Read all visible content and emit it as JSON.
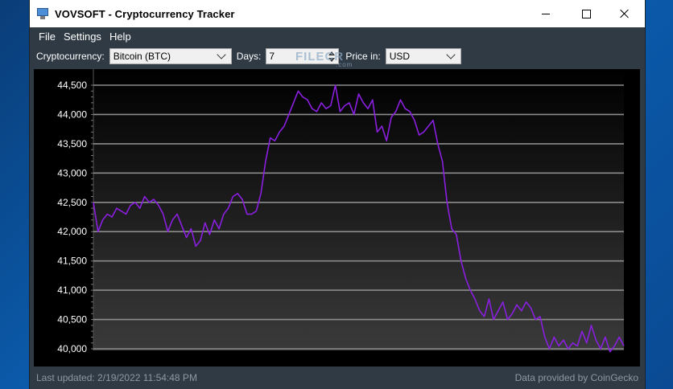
{
  "window": {
    "title": "VOVSOFT - Cryptocurrency Tracker"
  },
  "menu": [
    "File",
    "Settings",
    "Help"
  ],
  "toolbar": {
    "crypto_label": "Cryptocurrency:",
    "crypto_value": "Bitcoin (BTC)",
    "days_label": "Days:",
    "days_value": "7",
    "price_label": "Price in:",
    "price_value": "USD"
  },
  "watermark": {
    "main": "FILECR",
    "sub": ".com"
  },
  "status": {
    "last_updated": "Last updated: 2/19/2022 11:54:48 PM",
    "provider": "Data provided by CoinGecko"
  },
  "colors": {
    "line": "#8a1fe0",
    "grid": "#8c8c8c",
    "chart_bg_top": "#000000",
    "chart_bg_bottom": "#3a3a3a"
  },
  "chart_data": {
    "type": "line",
    "title": "",
    "xlabel": "",
    "ylabel": "",
    "ylim": [
      40000,
      44500
    ],
    "yticks": [
      40000,
      40500,
      41000,
      41500,
      42000,
      42500,
      43000,
      43500,
      44000,
      44500
    ],
    "ytick_labels": [
      "40,000",
      "40,500",
      "41,000",
      "41,500",
      "42,000",
      "42,500",
      "43,000",
      "43,500",
      "44,000",
      "44,500"
    ],
    "grid": true,
    "series": [
      {
        "values": [
          42500,
          42000,
          42200,
          42300,
          42250,
          42400,
          42350,
          42300,
          42450,
          42500,
          42400,
          42600,
          42500,
          42550,
          42450,
          42300,
          42000,
          42200,
          42300,
          42100,
          41900,
          42050,
          41750,
          41850,
          42150,
          41950,
          42200,
          42050,
          42300,
          42400,
          42600,
          42650,
          42550,
          42300,
          42300,
          42350,
          42650,
          43200,
          43600,
          43550,
          43700,
          43800,
          44000,
          44200,
          44400,
          44300,
          44250,
          44100,
          44050,
          44200,
          44100,
          44150,
          44500,
          44050,
          44150,
          44200,
          44000,
          44350,
          44200,
          44100,
          44250,
          43700,
          43800,
          43550,
          43950,
          44050,
          44250,
          44100,
          44050,
          43900,
          43650,
          43700,
          43800,
          43900,
          43500,
          43200,
          42500,
          42050,
          41950,
          41500,
          41200,
          41000,
          40850,
          40650,
          40550,
          40850,
          40500,
          40650,
          40800,
          40500,
          40600,
          40750,
          40650,
          40800,
          40700,
          40500,
          40550,
          40200,
          40000,
          40200,
          40050,
          40150,
          40000,
          40100,
          40050,
          40300,
          40100,
          40400,
          40150,
          40000,
          40200,
          39950,
          40050,
          40200,
          40050
        ]
      }
    ]
  }
}
